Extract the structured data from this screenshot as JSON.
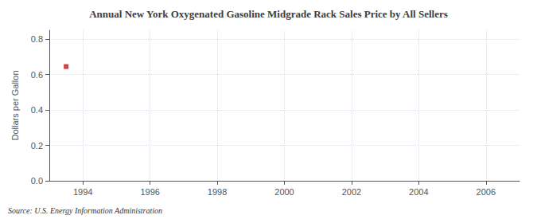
{
  "chart_data": {
    "type": "scatter",
    "title": "Annual New York Oxygenated Gasoline Midgrade Rack Sales Price by All Sellers",
    "ylabel": "Dollars per Gallon",
    "source": "Source: U.S. Energy Information Administration",
    "x": [
      1993.5
    ],
    "values": [
      0.645
    ],
    "color": "#cc1111",
    "marker": "square",
    "xlim": [
      1993,
      2007
    ],
    "xticks": [
      1994,
      1996,
      1998,
      2000,
      2002,
      2004,
      2006
    ],
    "ylim": [
      0.0,
      0.85
    ],
    "yticks": [
      {
        "value": 0.0,
        "label": "0.0"
      },
      0.2,
      0.4,
      0.6,
      0.8
    ],
    "grid": true
  }
}
